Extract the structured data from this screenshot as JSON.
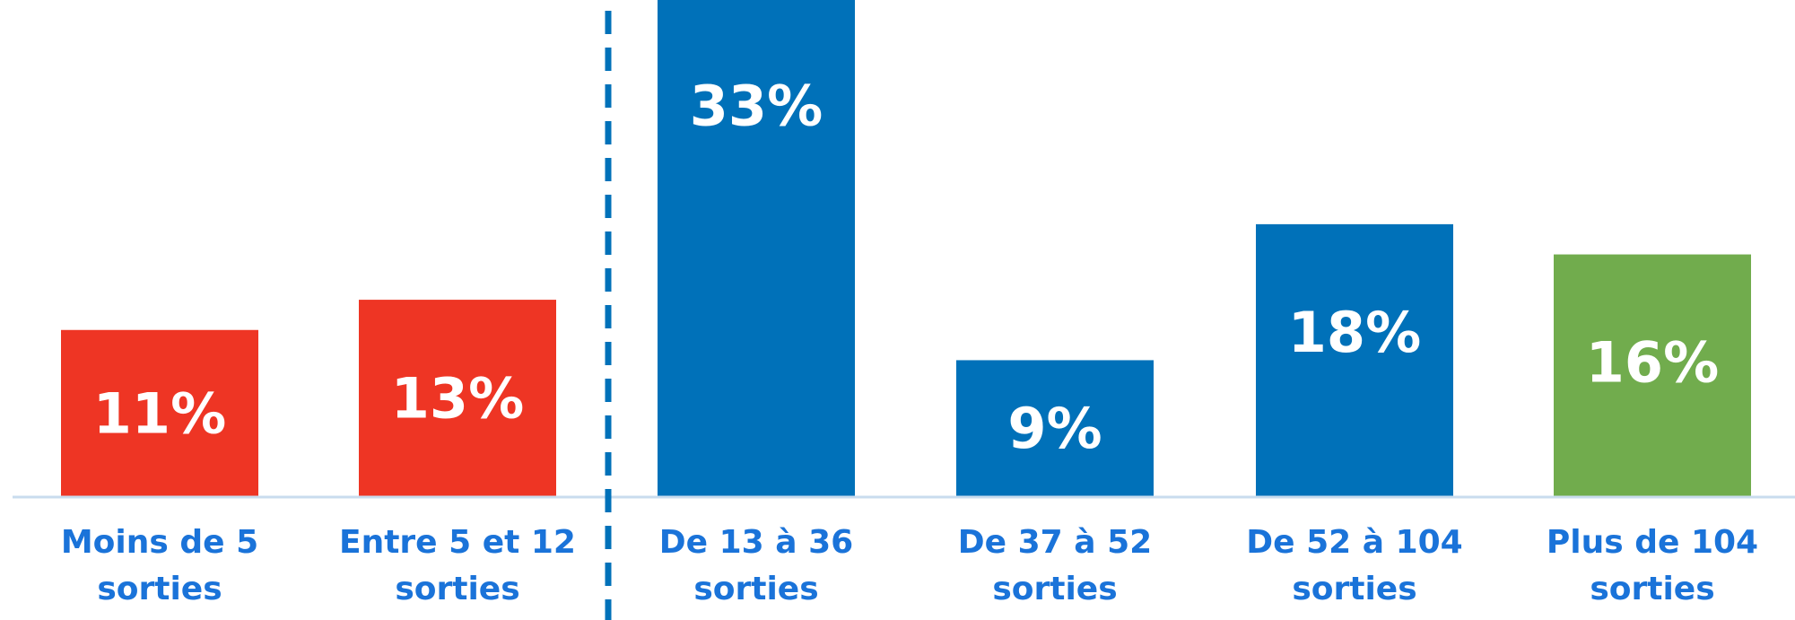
{
  "chart_data": {
    "type": "bar",
    "categories": [
      [
        "Moins de 5",
        "sorties"
      ],
      [
        "Entre 5 et 12",
        "sorties"
      ],
      [
        "De 13 à 36",
        "sorties"
      ],
      [
        "De 37 à 52",
        "sorties"
      ],
      [
        "De 52 à 104",
        "sorties"
      ],
      [
        "Plus de 104",
        "sorties"
      ]
    ],
    "values": [
      11,
      13,
      33,
      9,
      18,
      16
    ],
    "value_labels": [
      "11%",
      "13%",
      "33%",
      "9%",
      "18%",
      "16%"
    ],
    "bar_colors": [
      "#ee3524",
      "#ee3524",
      "#0071b9",
      "#0071b9",
      "#0071b9",
      "#71ac4d"
    ],
    "label_color": "#1a73d9",
    "baseline_color": "#c9dcee",
    "divider": {
      "after_category_index": 1,
      "color": "#0071b9",
      "style": "dashed"
    },
    "unit": "%",
    "ylim": [
      0,
      35
    ],
    "grid": false,
    "legend": "none"
  }
}
